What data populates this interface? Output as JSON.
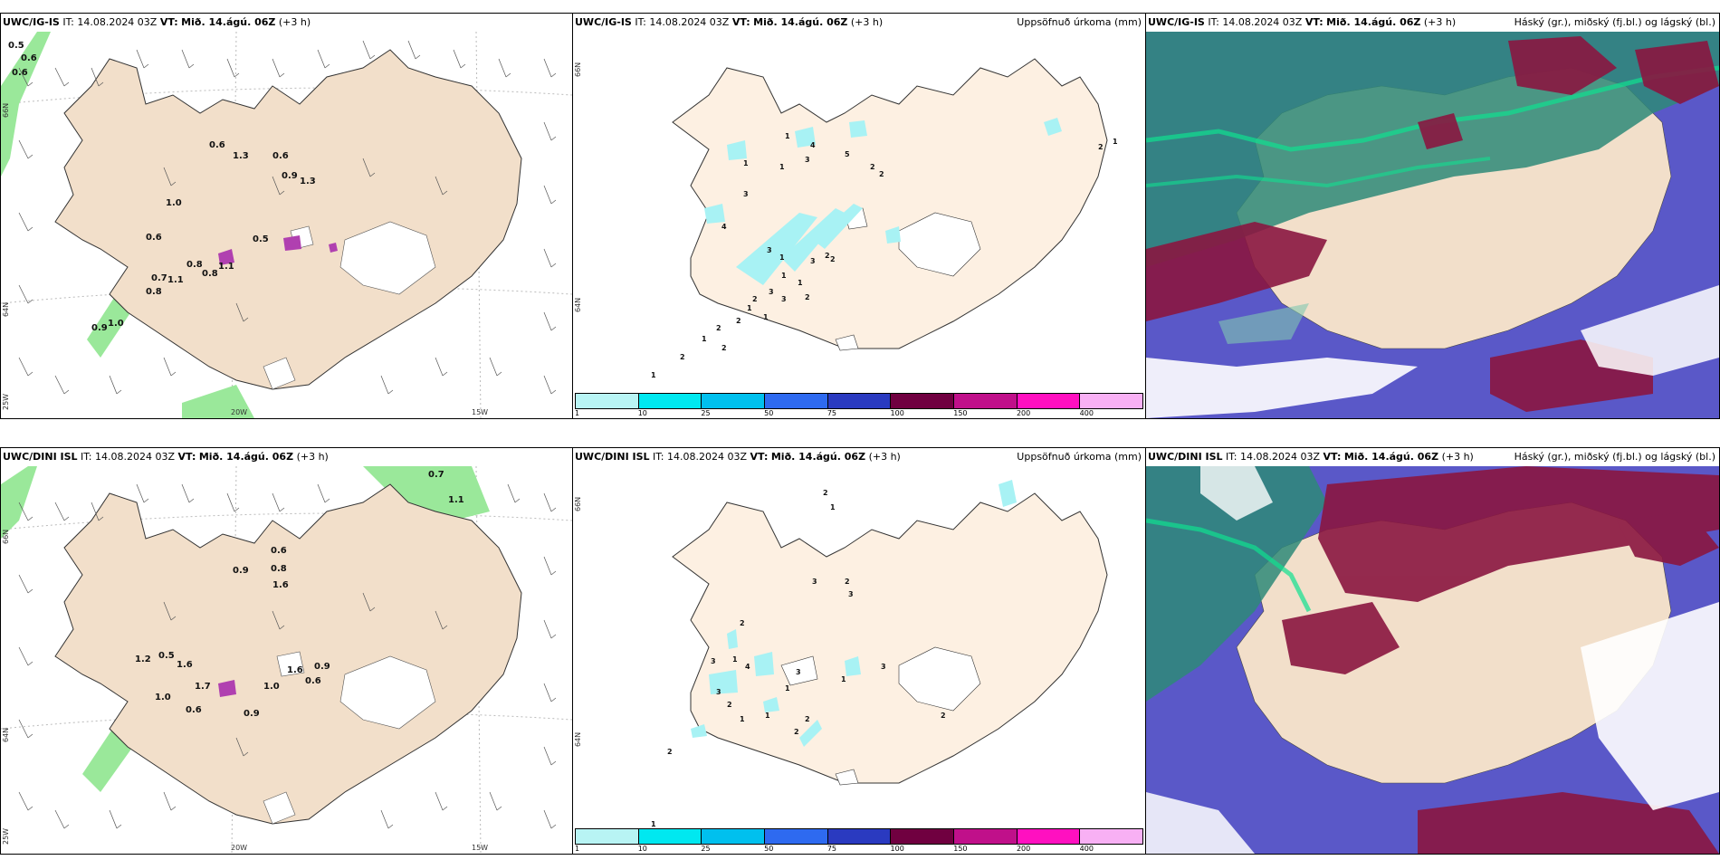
{
  "panels": [
    {
      "model": "UWC/IG-IS",
      "it_label": "IT:",
      "it": "14.08.2024 03Z",
      "vt_label": "VT:",
      "vt": "Mið. 14.ágú. 06Z",
      "lead": "(+3 h)",
      "title_right": ""
    },
    {
      "model": "UWC/IG-IS",
      "it_label": "IT:",
      "it": "14.08.2024 03Z",
      "vt_label": "VT:",
      "vt": "Mið. 14.ágú. 06Z",
      "lead": "(+3 h)",
      "title_right": "Uppsöfnuð úrkoma (mm)"
    },
    {
      "model": "UWC/IG-IS",
      "it_label": "IT:",
      "it": "14.08.2024 03Z",
      "vt_label": "VT:",
      "vt": "Mið. 14.ágú. 06Z",
      "lead": "(+3 h)",
      "title_right": "Háský (gr.), miðský (fj.bl.) og lágský (bl.)"
    },
    {
      "model": "UWC/DINI ISL",
      "it_label": "IT:",
      "it": "14.08.2024 03Z",
      "vt_label": "VT:",
      "vt": "Mið. 14.ágú. 06Z",
      "lead": "(+3 h)",
      "title_right": ""
    },
    {
      "model": "UWC/DINI ISL",
      "it_label": "IT:",
      "it": "14.08.2024 03Z",
      "vt_label": "VT:",
      "vt": "Mið. 14.ágú. 06Z",
      "lead": "(+3 h)",
      "title_right": "Uppsöfnuð úrkoma (mm)"
    },
    {
      "model": "UWC/DINI ISL",
      "it_label": "IT:",
      "it": "14.08.2024 03Z",
      "vt_label": "VT:",
      "vt": "Mið. 14.ágú. 06Z",
      "lead": "(+3 h)",
      "title_right": "Háský (gr.), miðský (fj.bl.) og lágský (bl.)"
    }
  ],
  "precip_scale": {
    "labels": [
      "1",
      "10",
      "25",
      "50",
      "75",
      "100",
      "150",
      "200",
      "400"
    ],
    "colors": [
      "#b8f4f4",
      "#00e8f0",
      "#00c0ee",
      "#2e6af0",
      "#2a3ac0",
      "#700040",
      "#c0108a",
      "#ff10c0",
      "#f8b0f4"
    ]
  },
  "grid_labels": {
    "lon_20": "20W",
    "lon_15": "15W",
    "lat_66": "66N",
    "lat_64": "64N",
    "lon_25": "25W"
  },
  "colors": {
    "land": "#f2dfca",
    "land_light": "#fdf0e2",
    "precip_green": "#9ae89a",
    "precip_cyan": "#a8f2f4",
    "cloud_high": "#2ea07a",
    "cloud_mid": "#8a1640",
    "cloud_low": "#5858c8"
  },
  "wind_labels_top": [
    "0.5",
    "0.6",
    "0.6",
    "0.6",
    "1.3",
    "0.6",
    "0.9",
    "1.3",
    "1.0",
    "0.6",
    "0.5",
    "0.8",
    "1.1",
    "0.8",
    "0.7",
    "1.1",
    "0.8",
    "1.0",
    "0.9"
  ],
  "wind_labels_bottom": [
    "0.7",
    "1.1",
    "0.6",
    "0.9",
    "0.8",
    "1.6",
    "1.2",
    "0.5",
    "1.6",
    "1.7",
    "1.0",
    "0.6",
    "1.6",
    "0.9",
    "1.0",
    "0.9",
    "0.6"
  ],
  "precip_numbers_top": [
    "1",
    "4",
    "3",
    "1",
    "1",
    "5",
    "2",
    "2",
    "3",
    "4",
    "3",
    "1",
    "2",
    "2",
    "3",
    "3",
    "3",
    "2",
    "2",
    "1",
    "1",
    "1",
    "2",
    "2",
    "1",
    "1",
    "2",
    "2",
    "1",
    "2",
    "1"
  ],
  "precip_numbers_bottom": [
    "1",
    "3",
    "2",
    "3",
    "2",
    "3",
    "4",
    "1",
    "3",
    "1",
    "3",
    "3",
    "1",
    "2",
    "2",
    "2",
    "1",
    "1",
    "2",
    "2",
    "1",
    "2"
  ]
}
